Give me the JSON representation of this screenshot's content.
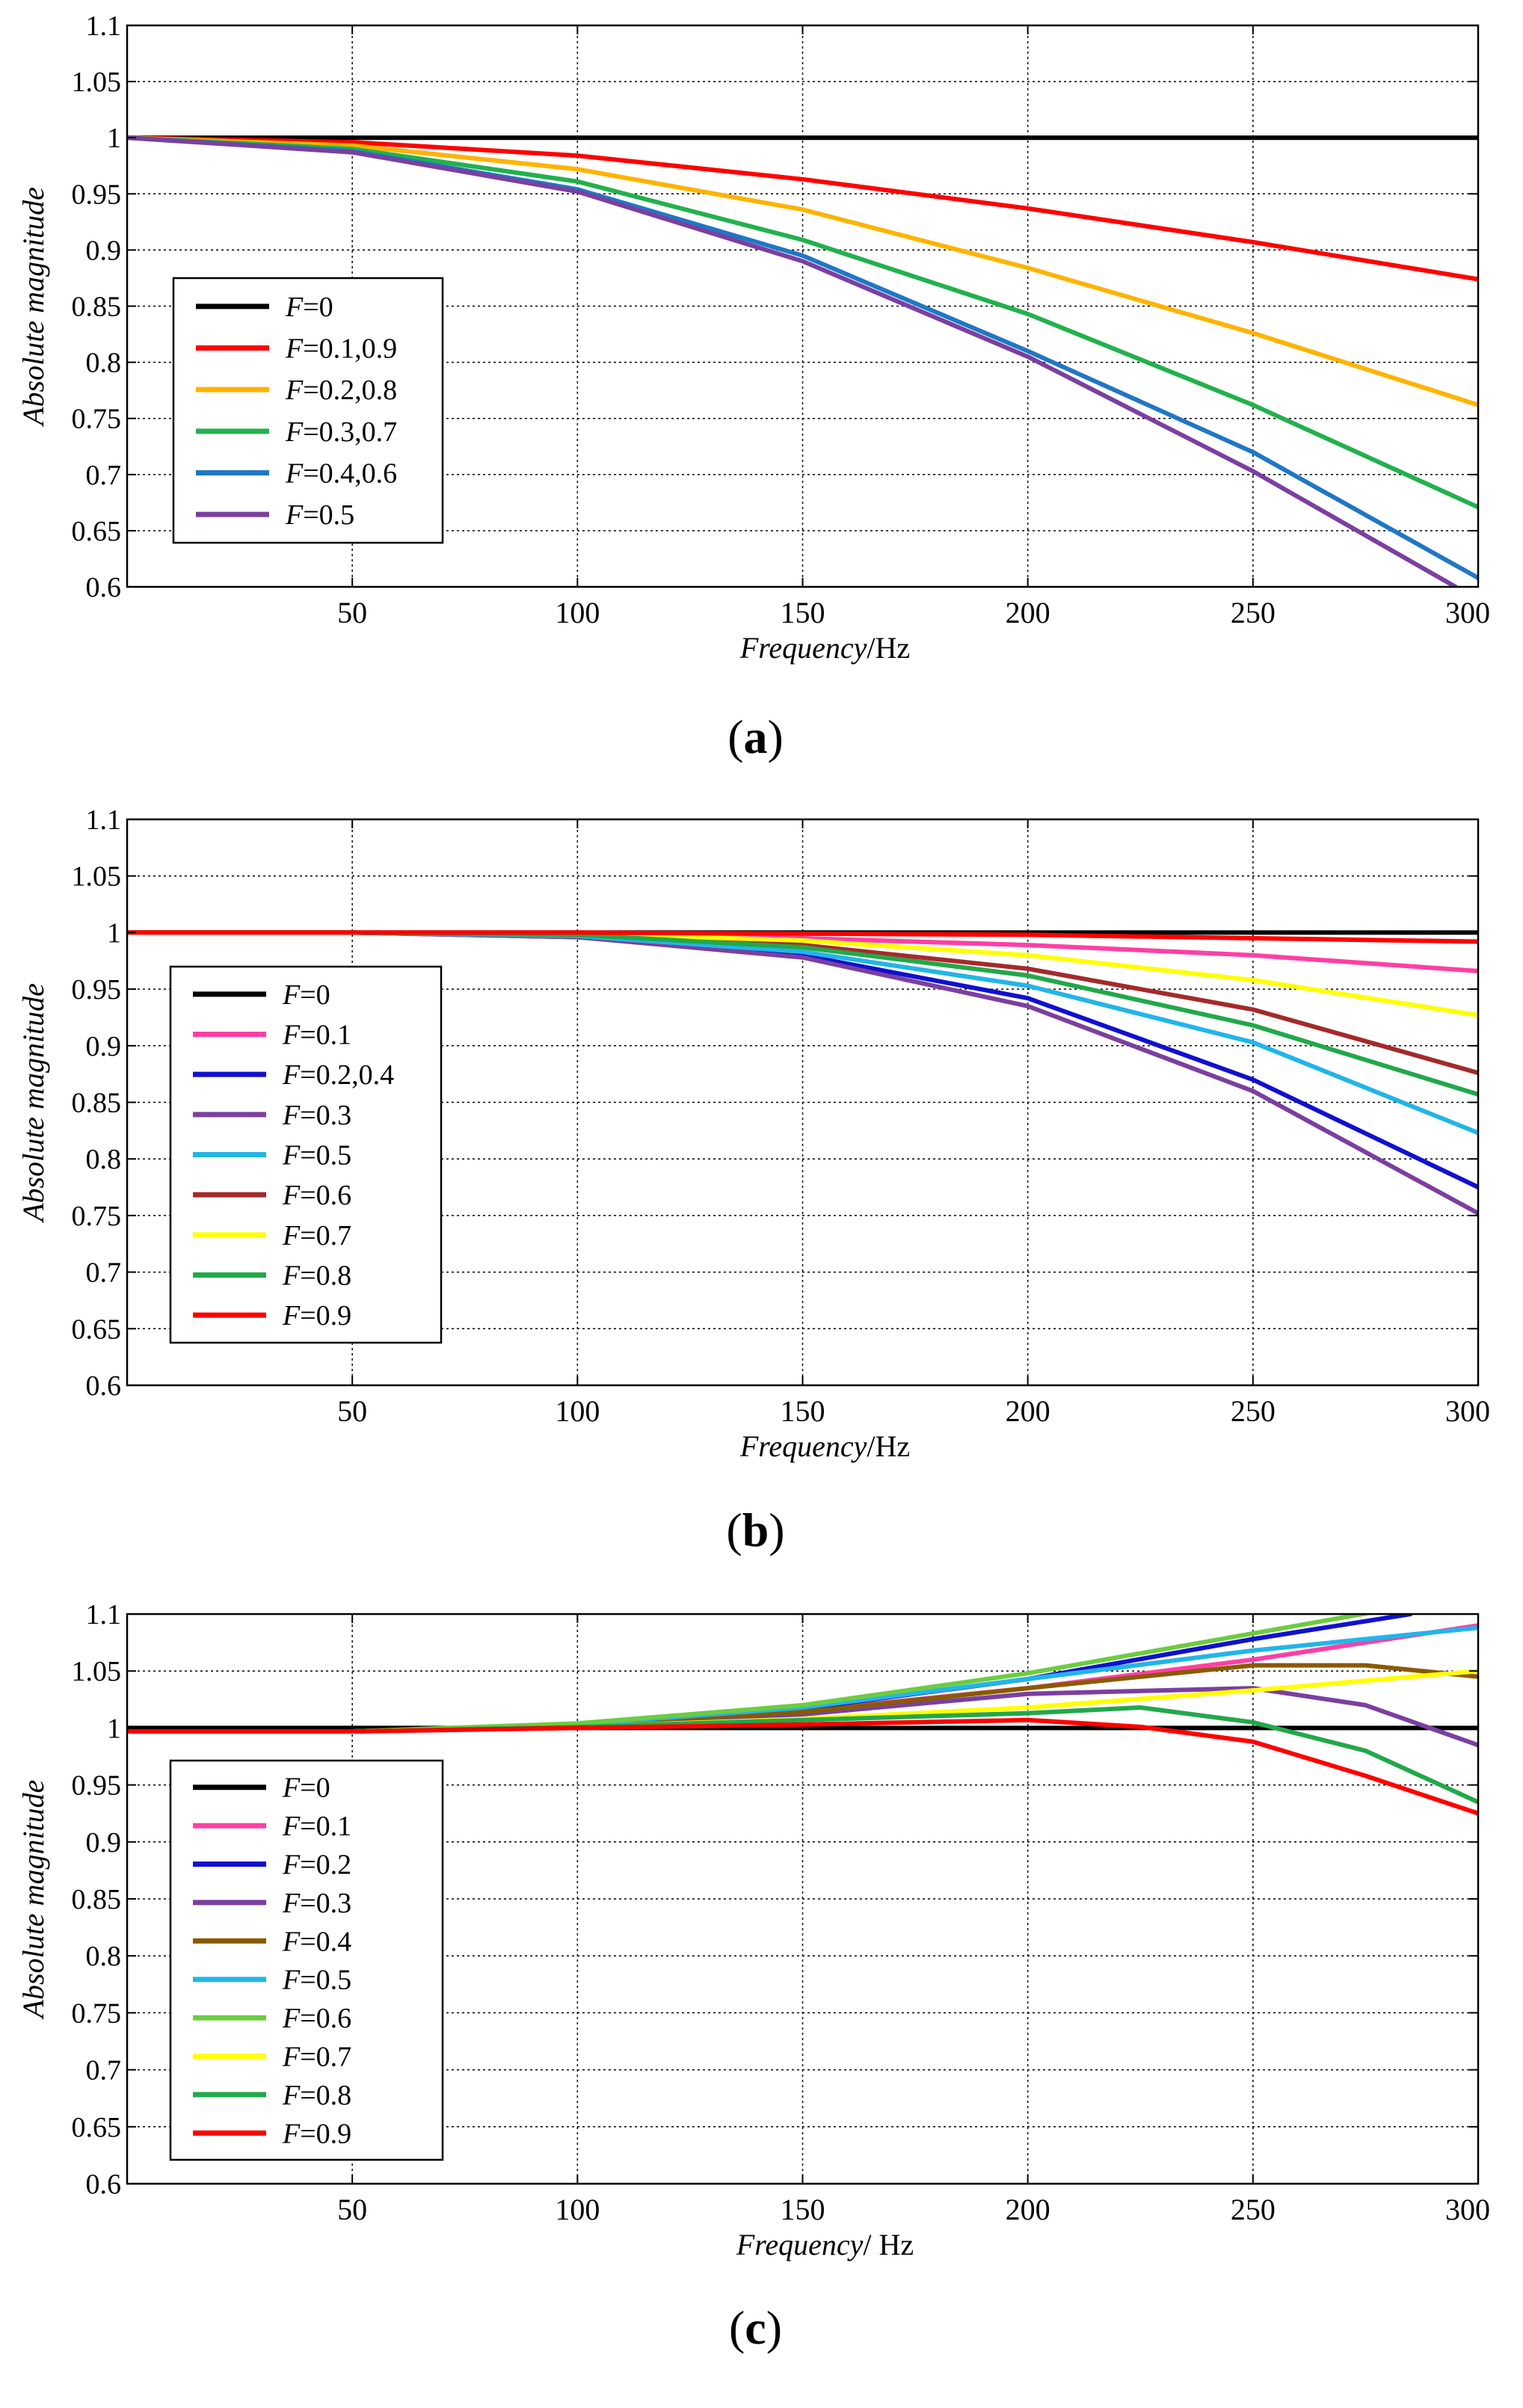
{
  "chart_data": [
    {
      "type": "line",
      "panel_label": [
        "(",
        "a",
        ")"
      ],
      "xlabel_italic": "Frequency",
      "xlabel_unit": "/Hz",
      "ylabel": "Absolute magnitude",
      "xlim": [
        0,
        300
      ],
      "ylim": [
        0.6,
        1.1
      ],
      "xticks": [
        50,
        100,
        150,
        200,
        250,
        300
      ],
      "yticks": [
        0.6,
        0.65,
        0.7,
        0.75,
        0.8,
        0.85,
        0.9,
        0.95,
        1,
        1.05,
        1.1
      ],
      "grid": true,
      "legend_position": "center-left",
      "series": [
        {
          "name": "=0",
          "color": "#000000",
          "x": [
            0,
            300
          ],
          "y": [
            1.0,
            1.0
          ]
        },
        {
          "name": "=0.1,0.9",
          "color": "#ff0000",
          "x": [
            0,
            50,
            100,
            150,
            200,
            250,
            300
          ],
          "y": [
            1.0,
            0.996,
            0.984,
            0.963,
            0.937,
            0.907,
            0.874
          ]
        },
        {
          "name": "=0.2,0.8",
          "color": "#ffb300",
          "x": [
            0,
            50,
            100,
            150,
            200,
            250,
            300
          ],
          "y": [
            1.0,
            0.993,
            0.972,
            0.936,
            0.884,
            0.826,
            0.762
          ]
        },
        {
          "name": "=0.3,0.7",
          "color": "#22b14c",
          "x": [
            0,
            50,
            100,
            150,
            200,
            250,
            300
          ],
          "y": [
            1.0,
            0.99,
            0.961,
            0.909,
            0.843,
            0.762,
            0.671
          ]
        },
        {
          "name": "=0.4,0.6",
          "color": "#1f77c4",
          "x": [
            0,
            50,
            100,
            150,
            200,
            250,
            300
          ],
          "y": [
            1.0,
            0.988,
            0.954,
            0.895,
            0.81,
            0.72,
            0.608
          ]
        },
        {
          "name": "=0.5",
          "color": "#7b3fa0",
          "x": [
            0,
            50,
            100,
            150,
            200,
            250,
            295
          ],
          "y": [
            1.0,
            0.987,
            0.952,
            0.89,
            0.805,
            0.703,
            0.6
          ]
        }
      ]
    },
    {
      "type": "line",
      "panel_label": [
        "(",
        "b",
        ")"
      ],
      "xlabel_italic": "Frequency",
      "xlabel_unit": "/Hz",
      "ylabel": "Absolute magnitude",
      "xlim": [
        0,
        300
      ],
      "ylim": [
        0.6,
        1.1
      ],
      "xticks": [
        50,
        100,
        150,
        200,
        250,
        300
      ],
      "yticks": [
        0.6,
        0.65,
        0.7,
        0.75,
        0.8,
        0.85,
        0.9,
        0.95,
        1,
        1.05,
        1.1
      ],
      "grid": true,
      "legend_position": "center-left",
      "series": [
        {
          "name": "=0",
          "color": "#000000",
          "x": [
            0,
            300
          ],
          "y": [
            1.0,
            1.0
          ]
        },
        {
          "name": "=0.1",
          "color": "#ff3fa4",
          "x": [
            0,
            50,
            100,
            150,
            200,
            250,
            300
          ],
          "y": [
            1.0,
            1.0,
            0.999,
            0.995,
            0.989,
            0.98,
            0.966
          ]
        },
        {
          "name": "=0.2,0.4",
          "color": "#1010d0",
          "x": [
            0,
            50,
            100,
            150,
            200,
            250,
            300
          ],
          "y": [
            1.0,
            1.0,
            0.996,
            0.98,
            0.942,
            0.87,
            0.775
          ]
        },
        {
          "name": "=0.3",
          "color": "#7b3fa0",
          "x": [
            0,
            50,
            100,
            150,
            200,
            250,
            300
          ],
          "y": [
            1.0,
            1.0,
            0.996,
            0.978,
            0.935,
            0.86,
            0.752
          ]
        },
        {
          "name": "=0.5",
          "color": "#22b5e8",
          "x": [
            0,
            50,
            100,
            150,
            200,
            250,
            300
          ],
          "y": [
            1.0,
            1.0,
            0.997,
            0.983,
            0.953,
            0.903,
            0.823
          ]
        },
        {
          "name": "=0.6",
          "color": "#a52a2a",
          "x": [
            0,
            50,
            100,
            150,
            200,
            250,
            300
          ],
          "y": [
            1.0,
            1.0,
            0.998,
            0.989,
            0.968,
            0.932,
            0.876
          ]
        },
        {
          "name": "=0.7",
          "color": "#ffff00",
          "x": [
            0,
            50,
            100,
            150,
            200,
            250,
            300
          ],
          "y": [
            1.0,
            1.0,
            0.999,
            0.993,
            0.98,
            0.958,
            0.927
          ]
        },
        {
          "name": "=0.8",
          "color": "#22a84a",
          "x": [
            0,
            50,
            100,
            150,
            200,
            250,
            300
          ],
          "y": [
            1.0,
            1.0,
            0.998,
            0.987,
            0.962,
            0.918,
            0.857
          ]
        },
        {
          "name": "=0.9",
          "color": "#ff0000",
          "x": [
            0,
            50,
            100,
            150,
            200,
            250,
            300
          ],
          "y": [
            1.0,
            1.0,
            1.0,
            0.999,
            0.998,
            0.995,
            0.992
          ]
        }
      ]
    },
    {
      "type": "line",
      "panel_label": [
        "(",
        "c",
        ")"
      ],
      "xlabel_italic": "Frequency",
      "xlabel_unit": "/ Hz",
      "ylabel": "Absolute magnitude",
      "xlim": [
        0,
        300
      ],
      "ylim": [
        0.6,
        1.1
      ],
      "xticks": [
        50,
        100,
        150,
        200,
        250,
        300
      ],
      "yticks": [
        0.6,
        0.65,
        0.7,
        0.75,
        0.8,
        0.85,
        0.9,
        0.95,
        1,
        1.05,
        1.1
      ],
      "grid": true,
      "legend_position": "center-left",
      "series": [
        {
          "name": "=0",
          "color": "#000000",
          "x": [
            0,
            300
          ],
          "y": [
            1.0,
            1.0
          ]
        },
        {
          "name": "=0.1",
          "color": "#ff3fa4",
          "x": [
            0,
            50,
            100,
            150,
            200,
            250,
            300
          ],
          "y": [
            0.997,
            0.997,
            1.003,
            1.015,
            1.035,
            1.06,
            1.09
          ]
        },
        {
          "name": "=0.2",
          "color": "#1010d0",
          "x": [
            0,
            50,
            100,
            150,
            200,
            250,
            285
          ],
          "y": [
            0.997,
            0.997,
            1.003,
            1.017,
            1.043,
            1.078,
            1.1
          ]
        },
        {
          "name": "=0.3",
          "color": "#7b3fa0",
          "x": [
            0,
            50,
            100,
            150,
            200,
            250,
            275,
            300
          ],
          "y": [
            0.997,
            0.997,
            1.002,
            1.012,
            1.03,
            1.035,
            1.02,
            0.985
          ]
        },
        {
          "name": "=0.4",
          "color": "#8a5a00",
          "x": [
            0,
            50,
            100,
            150,
            200,
            250,
            275,
            300
          ],
          "y": [
            0.997,
            0.997,
            1.003,
            1.014,
            1.035,
            1.055,
            1.055,
            1.045
          ]
        },
        {
          "name": "=0.5",
          "color": "#22b5e8",
          "x": [
            0,
            50,
            100,
            150,
            200,
            250,
            300
          ],
          "y": [
            0.997,
            0.997,
            1.003,
            1.018,
            1.043,
            1.068,
            1.088
          ]
        },
        {
          "name": "=0.6",
          "color": "#6ccc40",
          "x": [
            0,
            50,
            100,
            150,
            200,
            250,
            300
          ],
          "y": [
            0.997,
            0.997,
            1.004,
            1.02,
            1.048,
            1.083,
            1.118
          ]
        },
        {
          "name": "=0.7",
          "color": "#ffff00",
          "x": [
            0,
            50,
            100,
            150,
            200,
            250,
            300
          ],
          "y": [
            0.997,
            0.997,
            1.001,
            1.008,
            1.018,
            1.033,
            1.05
          ]
        },
        {
          "name": "=0.8",
          "color": "#22a84a",
          "x": [
            0,
            50,
            100,
            150,
            200,
            225,
            250,
            275,
            300
          ],
          "y": [
            0.997,
            0.997,
            1.001,
            1.007,
            1.013,
            1.018,
            1.005,
            0.98,
            0.935
          ]
        },
        {
          "name": "=0.9",
          "color": "#ff0000",
          "x": [
            0,
            50,
            100,
            150,
            200,
            225,
            250,
            275,
            300
          ],
          "y": [
            0.997,
            0.997,
            1.0,
            1.003,
            1.007,
            1.001,
            0.988,
            0.958,
            0.925
          ]
        }
      ]
    }
  ]
}
